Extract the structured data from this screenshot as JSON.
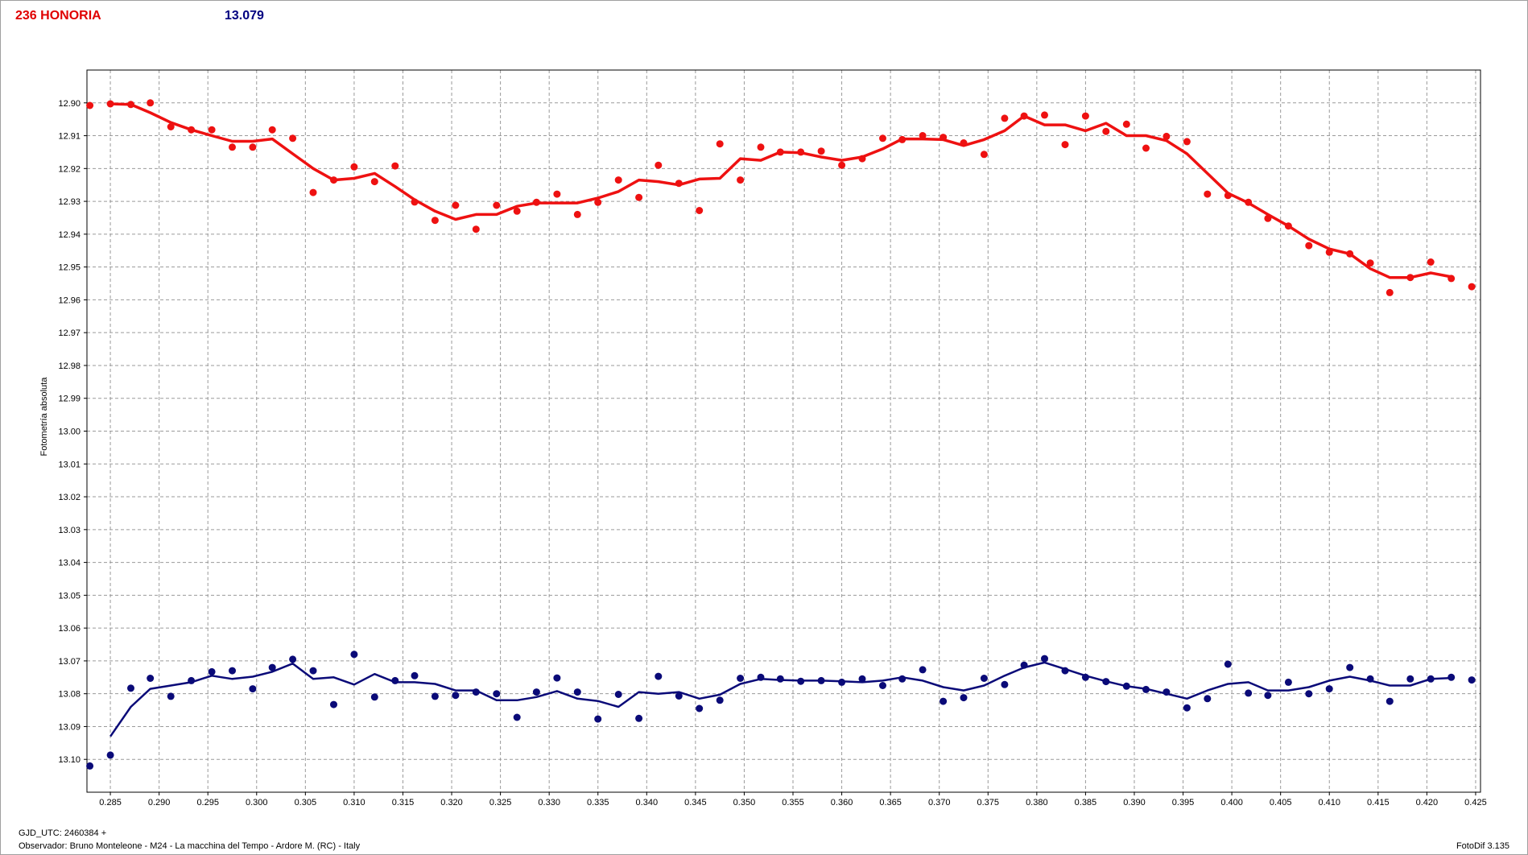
{
  "header": {
    "object_name": "236 HONORIA",
    "reference_value": "13.079"
  },
  "footer": {
    "gjd": "GJD_UTC: 2460384 +",
    "observer": "Observador: Bruno Monteleone - M24 - La macchina del Tempo - Ardore M. (RC) - Italy",
    "software": "FotoDif 3.135"
  },
  "colors": {
    "asteroid": "#ee1111",
    "comparison": "#0a0a78",
    "grid": "#9a9a9a"
  },
  "chart_data": {
    "type": "scatter",
    "title": "",
    "xlabel": "",
    "ylabel": "Fotometría absoluta",
    "xlim": [
      0.2826,
      0.4255
    ],
    "ylim": [
      12.89,
      13.11
    ],
    "y_inverted": true,
    "grid": true,
    "x_ticks": [
      "0.285",
      "0.290",
      "0.295",
      "0.300",
      "0.305",
      "0.310",
      "0.315",
      "0.320",
      "0.325",
      "0.330",
      "0.335",
      "0.340",
      "0.345",
      "0.350",
      "0.355",
      "0.360",
      "0.365",
      "0.370",
      "0.375",
      "0.380",
      "0.385",
      "0.390",
      "0.395",
      "0.400",
      "0.405",
      "0.410",
      "0.415",
      "0.420",
      "0.425"
    ],
    "y_ticks": [
      "12.90",
      "12.91",
      "12.92",
      "12.93",
      "12.94",
      "12.95",
      "12.96",
      "12.97",
      "12.98",
      "12.99",
      "13.00",
      "13.01",
      "13.02",
      "13.03",
      "13.04",
      "13.05",
      "13.06",
      "13.07",
      "13.08",
      "13.09",
      "13.10"
    ],
    "series": [
      {
        "color": "#ee1111",
        "points": [
          [
            0.2829,
            12.9008
          ],
          [
            0.285,
            12.9003
          ],
          [
            0.2871,
            12.9005
          ],
          [
            0.2891,
            12.9
          ],
          [
            0.2912,
            12.9073
          ],
          [
            0.2933,
            12.9082
          ],
          [
            0.2954,
            12.9082
          ],
          [
            0.2975,
            12.9135
          ],
          [
            0.2996,
            12.9135
          ],
          [
            0.3016,
            12.9082
          ],
          [
            0.3037,
            12.9108
          ],
          [
            0.3058,
            12.9273
          ],
          [
            0.3079,
            12.9235
          ],
          [
            0.31,
            12.9195
          ],
          [
            0.3121,
            12.924
          ],
          [
            0.3142,
            12.9192
          ],
          [
            0.3162,
            12.9302
          ],
          [
            0.3183,
            12.9358
          ],
          [
            0.3204,
            12.9312
          ],
          [
            0.3225,
            12.9385
          ],
          [
            0.3246,
            12.9312
          ],
          [
            0.3267,
            12.933
          ],
          [
            0.3287,
            12.9303
          ],
          [
            0.3308,
            12.9278
          ],
          [
            0.3329,
            12.934
          ],
          [
            0.335,
            12.9303
          ],
          [
            0.3371,
            12.9235
          ],
          [
            0.3392,
            12.9288
          ],
          [
            0.3412,
            12.919
          ],
          [
            0.3433,
            12.9245
          ],
          [
            0.3454,
            12.9328
          ],
          [
            0.3475,
            12.9125
          ],
          [
            0.3496,
            12.9235
          ],
          [
            0.3517,
            12.9135
          ],
          [
            0.3537,
            12.915
          ],
          [
            0.3558,
            12.915
          ],
          [
            0.3579,
            12.9147
          ],
          [
            0.36,
            12.919
          ],
          [
            0.3621,
            12.917
          ],
          [
            0.3642,
            12.9108
          ],
          [
            0.3662,
            12.9112
          ],
          [
            0.3683,
            12.91
          ],
          [
            0.3704,
            12.9105
          ],
          [
            0.3725,
            12.9122
          ],
          [
            0.3746,
            12.9157
          ],
          [
            0.3767,
            12.9047
          ],
          [
            0.3787,
            12.904
          ],
          [
            0.3808,
            12.9037
          ],
          [
            0.3829,
            12.9127
          ],
          [
            0.385,
            12.904
          ],
          [
            0.3871,
            12.9087
          ],
          [
            0.3892,
            12.9065
          ],
          [
            0.3912,
            12.9138
          ],
          [
            0.3933,
            12.9102
          ],
          [
            0.3954,
            12.9118
          ],
          [
            0.3975,
            12.9278
          ],
          [
            0.3996,
            12.9282
          ],
          [
            0.4017,
            12.9303
          ],
          [
            0.4037,
            12.9352
          ],
          [
            0.4058,
            12.9375
          ],
          [
            0.4079,
            12.9435
          ],
          [
            0.41,
            12.9455
          ],
          [
            0.4121,
            12.946
          ],
          [
            0.4142,
            12.9488
          ],
          [
            0.4162,
            12.9578
          ],
          [
            0.4183,
            12.9532
          ],
          [
            0.4204,
            12.9485
          ],
          [
            0.4225,
            12.9535
          ],
          [
            0.4246,
            12.956
          ]
        ],
        "trend": [
          [
            0.285,
            12.9003
          ],
          [
            0.2871,
            12.9005
          ],
          [
            0.2891,
            12.903
          ],
          [
            0.2912,
            12.906
          ],
          [
            0.2933,
            12.9082
          ],
          [
            0.2954,
            12.91
          ],
          [
            0.2975,
            12.9117
          ],
          [
            0.2996,
            12.9117
          ],
          [
            0.3016,
            12.911
          ],
          [
            0.3037,
            12.9155
          ],
          [
            0.3058,
            12.92
          ],
          [
            0.3079,
            12.9235
          ],
          [
            0.31,
            12.923
          ],
          [
            0.3121,
            12.9215
          ],
          [
            0.3142,
            12.9255
          ],
          [
            0.3162,
            12.9295
          ],
          [
            0.3183,
            12.933
          ],
          [
            0.3204,
            12.9355
          ],
          [
            0.3225,
            12.934
          ],
          [
            0.3246,
            12.934
          ],
          [
            0.3267,
            12.9315
          ],
          [
            0.3287,
            12.9305
          ],
          [
            0.3308,
            12.9305
          ],
          [
            0.3329,
            12.9305
          ],
          [
            0.335,
            12.929
          ],
          [
            0.3371,
            12.927
          ],
          [
            0.3392,
            12.9235
          ],
          [
            0.3412,
            12.924
          ],
          [
            0.3433,
            12.925
          ],
          [
            0.3454,
            12.9232
          ],
          [
            0.3475,
            12.923
          ],
          [
            0.3496,
            12.917
          ],
          [
            0.3517,
            12.9175
          ],
          [
            0.3537,
            12.915
          ],
          [
            0.3558,
            12.9152
          ],
          [
            0.3579,
            12.9165
          ],
          [
            0.36,
            12.9175
          ],
          [
            0.3621,
            12.9165
          ],
          [
            0.3642,
            12.914
          ],
          [
            0.3662,
            12.911
          ],
          [
            0.3683,
            12.911
          ],
          [
            0.3704,
            12.9112
          ],
          [
            0.3725,
            12.913
          ],
          [
            0.3746,
            12.9112
          ],
          [
            0.3767,
            12.9085
          ],
          [
            0.3787,
            12.904
          ],
          [
            0.3808,
            12.9067
          ],
          [
            0.3829,
            12.9067
          ],
          [
            0.385,
            12.9085
          ],
          [
            0.3871,
            12.9062
          ],
          [
            0.3892,
            12.91
          ],
          [
            0.3912,
            12.91
          ],
          [
            0.3933,
            12.9115
          ],
          [
            0.3954,
            12.9155
          ],
          [
            0.3975,
            12.9215
          ],
          [
            0.3996,
            12.9275
          ],
          [
            0.4017,
            12.9305
          ],
          [
            0.4037,
            12.934
          ],
          [
            0.4058,
            12.9375
          ],
          [
            0.4079,
            12.9415
          ],
          [
            0.41,
            12.9445
          ],
          [
            0.4121,
            12.946
          ],
          [
            0.4142,
            12.9505
          ],
          [
            0.4162,
            12.9532
          ],
          [
            0.4183,
            12.9532
          ],
          [
            0.4204,
            12.9518
          ],
          [
            0.4225,
            12.953
          ]
        ]
      },
      {
        "color": "#0a0a78",
        "points": [
          [
            0.2829,
            13.102
          ],
          [
            0.285,
            13.0987
          ],
          [
            0.2871,
            13.0783
          ],
          [
            0.2891,
            13.0753
          ],
          [
            0.2912,
            13.0808
          ],
          [
            0.2933,
            13.076
          ],
          [
            0.2954,
            13.0733
          ],
          [
            0.2975,
            13.073
          ],
          [
            0.2996,
            13.0785
          ],
          [
            0.3016,
            13.072
          ],
          [
            0.3037,
            13.0695
          ],
          [
            0.3058,
            13.073
          ],
          [
            0.3079,
            13.0833
          ],
          [
            0.31,
            13.068
          ],
          [
            0.3121,
            13.081
          ],
          [
            0.3142,
            13.076
          ],
          [
            0.3162,
            13.0745
          ],
          [
            0.3183,
            13.0808
          ],
          [
            0.3204,
            13.0805
          ],
          [
            0.3225,
            13.0795
          ],
          [
            0.3246,
            13.08
          ],
          [
            0.3267,
            13.0872
          ],
          [
            0.3287,
            13.0795
          ],
          [
            0.3308,
            13.0752
          ],
          [
            0.3329,
            13.0795
          ],
          [
            0.335,
            13.0877
          ],
          [
            0.3371,
            13.0802
          ],
          [
            0.3392,
            13.0875
          ],
          [
            0.3412,
            13.0747
          ],
          [
            0.3433,
            13.0807
          ],
          [
            0.3454,
            13.0845
          ],
          [
            0.3475,
            13.082
          ],
          [
            0.3496,
            13.0753
          ],
          [
            0.3517,
            13.075
          ],
          [
            0.3537,
            13.0755
          ],
          [
            0.3558,
            13.0762
          ],
          [
            0.3579,
            13.076
          ],
          [
            0.36,
            13.0765
          ],
          [
            0.3621,
            13.0755
          ],
          [
            0.3642,
            13.0775
          ],
          [
            0.3662,
            13.0755
          ],
          [
            0.3683,
            13.0727
          ],
          [
            0.3704,
            13.0823
          ],
          [
            0.3725,
            13.0812
          ],
          [
            0.3746,
            13.0753
          ],
          [
            0.3767,
            13.0772
          ],
          [
            0.3787,
            13.0713
          ],
          [
            0.3808,
            13.0693
          ],
          [
            0.3829,
            13.073
          ],
          [
            0.385,
            13.075
          ],
          [
            0.3871,
            13.0763
          ],
          [
            0.3892,
            13.0777
          ],
          [
            0.3912,
            13.0787
          ],
          [
            0.3933,
            13.0795
          ],
          [
            0.3954,
            13.0843
          ],
          [
            0.3975,
            13.0815
          ],
          [
            0.3996,
            13.071
          ],
          [
            0.4017,
            13.0798
          ],
          [
            0.4037,
            13.0805
          ],
          [
            0.4058,
            13.0765
          ],
          [
            0.4079,
            13.08
          ],
          [
            0.41,
            13.0785
          ],
          [
            0.4121,
            13.072
          ],
          [
            0.4142,
            13.0755
          ],
          [
            0.4162,
            13.0823
          ],
          [
            0.4183,
            13.0755
          ],
          [
            0.4204,
            13.0755
          ],
          [
            0.4225,
            13.075
          ],
          [
            0.4246,
            13.0758
          ]
        ],
        "trend": [
          [
            0.285,
            13.093
          ],
          [
            0.2871,
            13.084
          ],
          [
            0.2891,
            13.0785
          ],
          [
            0.2912,
            13.0775
          ],
          [
            0.2933,
            13.0765
          ],
          [
            0.2954,
            13.0745
          ],
          [
            0.2975,
            13.0755
          ],
          [
            0.2996,
            13.0748
          ],
          [
            0.3016,
            13.0733
          ],
          [
            0.3037,
            13.0708
          ],
          [
            0.3058,
            13.0755
          ],
          [
            0.3079,
            13.075
          ],
          [
            0.31,
            13.0772
          ],
          [
            0.3121,
            13.074
          ],
          [
            0.3142,
            13.0765
          ],
          [
            0.3162,
            13.0765
          ],
          [
            0.3183,
            13.077
          ],
          [
            0.3204,
            13.079
          ],
          [
            0.3225,
            13.079
          ],
          [
            0.3246,
            13.082
          ],
          [
            0.3267,
            13.082
          ],
          [
            0.3287,
            13.081
          ],
          [
            0.3308,
            13.0792
          ],
          [
            0.3329,
            13.0815
          ],
          [
            0.335,
            13.0822
          ],
          [
            0.3371,
            13.084
          ],
          [
            0.3392,
            13.0795
          ],
          [
            0.3412,
            13.08
          ],
          [
            0.3433,
            13.0795
          ],
          [
            0.3454,
            13.0815
          ],
          [
            0.3475,
            13.0803
          ],
          [
            0.3496,
            13.077
          ],
          [
            0.3517,
            13.0755
          ],
          [
            0.3537,
            13.0758
          ],
          [
            0.3558,
            13.076
          ],
          [
            0.3579,
            13.076
          ],
          [
            0.36,
            13.0762
          ],
          [
            0.3621,
            13.0765
          ],
          [
            0.3642,
            13.076
          ],
          [
            0.3662,
            13.075
          ],
          [
            0.3683,
            13.076
          ],
          [
            0.3704,
            13.078
          ],
          [
            0.3725,
            13.079
          ],
          [
            0.3746,
            13.0775
          ],
          [
            0.3767,
            13.0745
          ],
          [
            0.3787,
            13.072
          ],
          [
            0.3808,
            13.0705
          ],
          [
            0.3829,
            13.0725
          ],
          [
            0.385,
            13.0745
          ],
          [
            0.3871,
            13.0762
          ],
          [
            0.3892,
            13.0777
          ],
          [
            0.3912,
            13.0785
          ],
          [
            0.3933,
            13.08
          ],
          [
            0.3954,
            13.0815
          ],
          [
            0.3975,
            13.079
          ],
          [
            0.3996,
            13.077
          ],
          [
            0.4017,
            13.0765
          ],
          [
            0.4037,
            13.079
          ],
          [
            0.4058,
            13.079
          ],
          [
            0.4079,
            13.078
          ],
          [
            0.41,
            13.076
          ],
          [
            0.4121,
            13.0748
          ],
          [
            0.4142,
            13.076
          ],
          [
            0.4162,
            13.0775
          ],
          [
            0.4183,
            13.0775
          ],
          [
            0.4204,
            13.0755
          ],
          [
            0.4225,
            13.0752
          ]
        ]
      }
    ]
  }
}
